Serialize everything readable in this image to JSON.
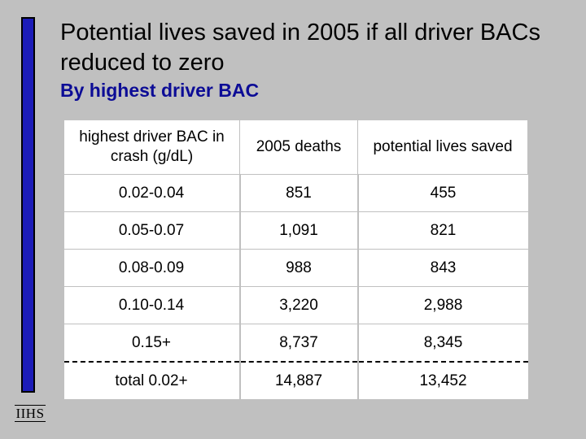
{
  "slide": {
    "title": "Potential lives saved in 2005 if all driver BACs reduced to zero",
    "subtitle": "By highest driver BAC",
    "logo_text": "IIHS",
    "accent_color": "#1c1cb8",
    "subtitle_color": "#0c0c96",
    "background_color": "#c0c0c0"
  },
  "table": {
    "headers": [
      "highest driver BAC in crash (g/dL)",
      "2005 deaths",
      "potential lives saved"
    ],
    "rows": [
      [
        "0.02-0.04",
        "851",
        "455"
      ],
      [
        "0.05-0.07",
        "1,091",
        "821"
      ],
      [
        "0.08-0.09",
        "988",
        "843"
      ],
      [
        "0.10-0.14",
        "3,220",
        "2,988"
      ],
      [
        "0.15+",
        "8,737",
        "8,345"
      ]
    ],
    "total": [
      "total 0.02+",
      "14,887",
      "13,452"
    ]
  }
}
